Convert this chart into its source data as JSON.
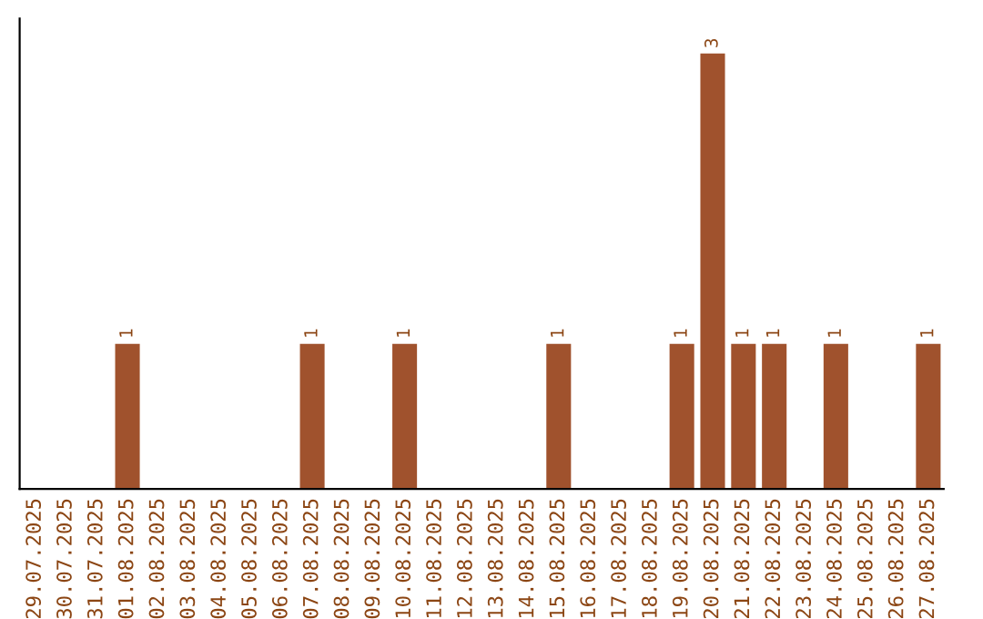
{
  "chart_data": {
    "type": "bar",
    "categories": [
      "29.07.2025",
      "30.07.2025",
      "31.07.2025",
      "01.08.2025",
      "02.08.2025",
      "03.08.2025",
      "04.08.2025",
      "05.08.2025",
      "06.08.2025",
      "07.08.2025",
      "08.08.2025",
      "09.08.2025",
      "10.08.2025",
      "11.08.2025",
      "12.08.2025",
      "13.08.2025",
      "14.08.2025",
      "15.08.2025",
      "16.08.2025",
      "17.08.2025",
      "18.08.2025",
      "19.08.2025",
      "20.08.2025",
      "21.08.2025",
      "22.08.2025",
      "23.08.2025",
      "24.08.2025",
      "25.08.2025",
      "26.08.2025",
      "27.08.2025"
    ],
    "values": [
      0,
      0,
      0,
      1,
      0,
      0,
      0,
      0,
      0,
      1,
      0,
      0,
      1,
      0,
      0,
      0,
      0,
      1,
      0,
      0,
      0,
      1,
      3,
      1,
      1,
      0,
      1,
      0,
      0,
      1
    ],
    "value_labels": [
      null,
      null,
      null,
      "1",
      null,
      null,
      null,
      null,
      null,
      "1",
      null,
      null,
      "1",
      null,
      null,
      null,
      null,
      "1",
      null,
      null,
      null,
      "1",
      "3",
      "1",
      "1",
      null,
      "1",
      null,
      null,
      "1"
    ],
    "color": "#a0522d",
    "grid": false,
    "legend": false,
    "tick_labels": "x"
  }
}
